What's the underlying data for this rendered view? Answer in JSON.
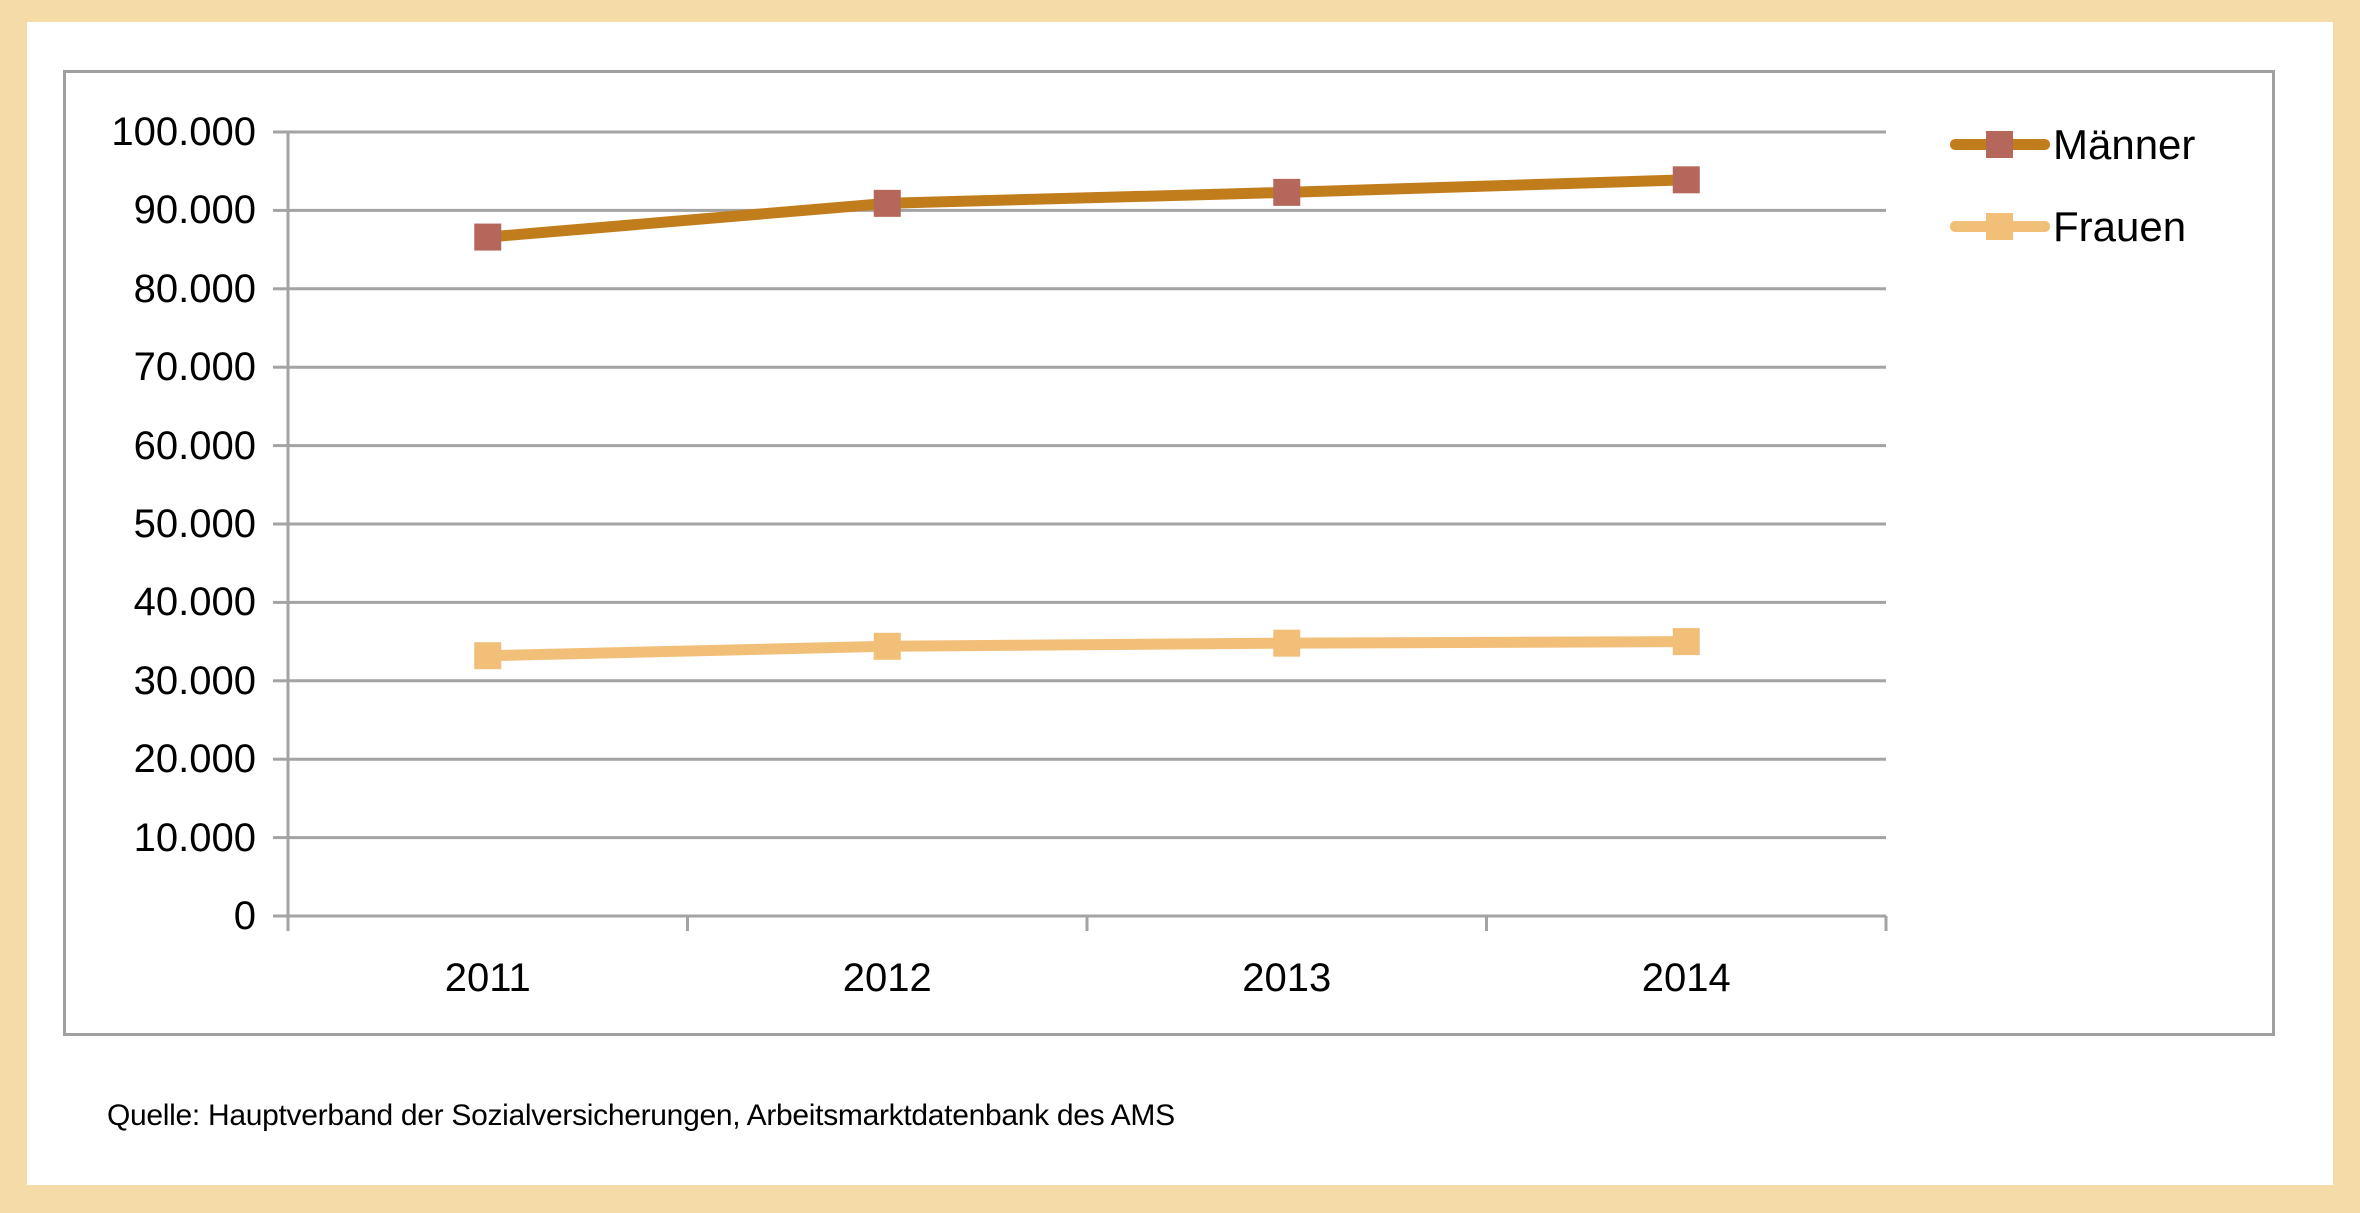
{
  "page": {
    "background_color": "#F5DBA7",
    "panel_color": "#FFFFFF",
    "chart_border_color": "#A0A0A0",
    "source_note": "Quelle: Hauptverband der Sozialversicherungen, Arbeitsmarktdatenbank des AMS"
  },
  "chart_data": {
    "type": "line",
    "categories": [
      "2011",
      "2012",
      "2013",
      "2014"
    ],
    "series": [
      {
        "name": "Männer",
        "values": [
          86600,
          90900,
          92300,
          93900
        ],
        "line_color": "#C17D1C",
        "marker_color": "#B5675C",
        "marker_shape": "square"
      },
      {
        "name": "Frauen",
        "values": [
          33200,
          34400,
          34800,
          35000
        ],
        "line_color": "#F2BF79",
        "marker_color": "#F2BF79",
        "marker_shape": "square"
      }
    ],
    "ylim": [
      0,
      100000
    ],
    "y_tick_step": 10000,
    "y_tick_labels": [
      "0",
      "10.000",
      "20.000",
      "30.000",
      "40.000",
      "50.000",
      "60.000",
      "70.000",
      "80.000",
      "90.000",
      "100.000"
    ],
    "grid": "horizontal",
    "gridline_color": "#A3A3A3",
    "axis_color": "#A3A3A3",
    "legend_position": "top-right",
    "title": "",
    "xlabel": "",
    "ylabel": ""
  }
}
